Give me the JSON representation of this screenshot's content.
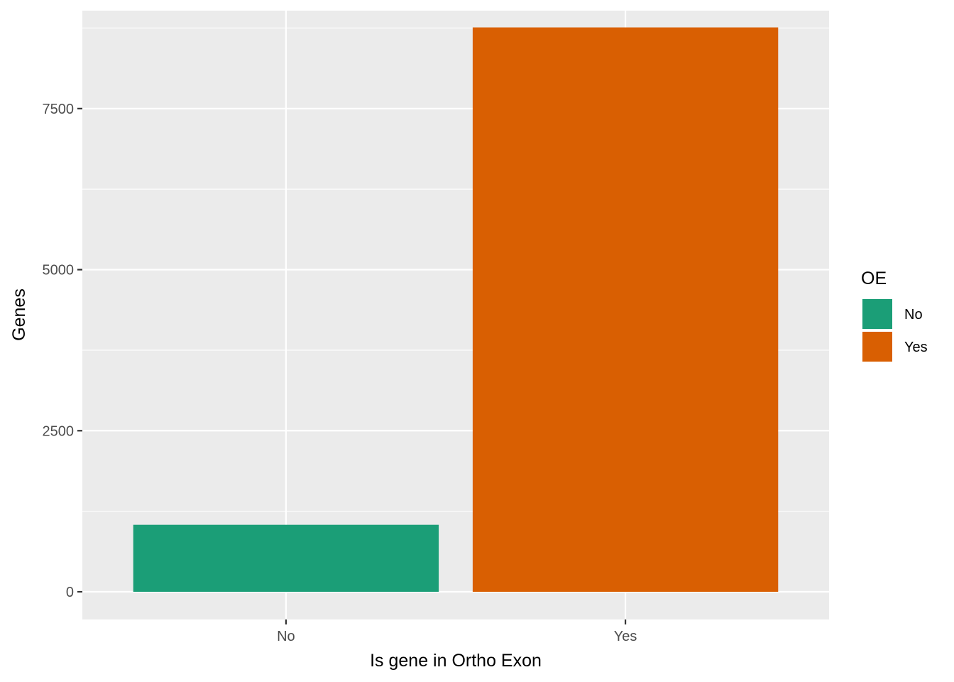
{
  "chart_data": {
    "type": "bar",
    "categories": [
      "No",
      "Yes"
    ],
    "values": [
      1040,
      8760
    ],
    "xlabel": "Is gene in Ortho Exon",
    "ylabel": "Genes",
    "ylim": [
      -430,
      9020
    ],
    "yticks": [
      0,
      2500,
      5000,
      7500
    ],
    "ytick_labels": [
      "0",
      "2500",
      "5000",
      "7500"
    ],
    "grid": true,
    "legend": {
      "title": "OE",
      "placement": "right",
      "entries": [
        {
          "label": "No",
          "color": "#1B9E77"
        },
        {
          "label": "Yes",
          "color": "#D95F02"
        }
      ]
    },
    "colors": {
      "panel_background": "#EBEBEB",
      "grid_line": "#FFFFFF",
      "bar_no": "#1B9E77",
      "bar_yes": "#D95F02"
    }
  }
}
